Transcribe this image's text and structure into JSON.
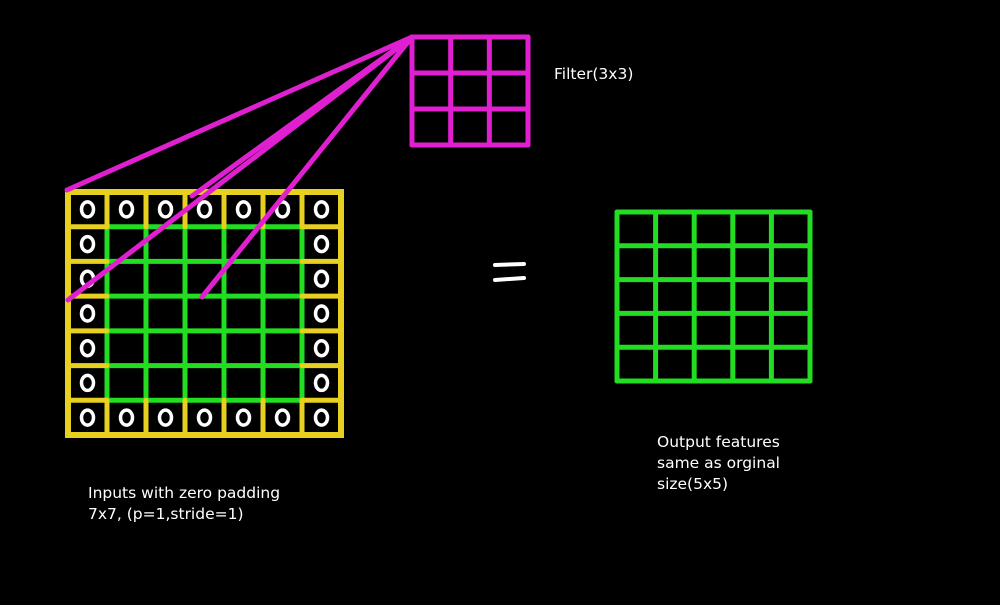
{
  "filter": {
    "label": "Filter(3x3)",
    "rows": 3,
    "cols": 3,
    "color": "#e020d0"
  },
  "input": {
    "label_line1": "Inputs with zero padding",
    "label_line2": "7x7, (p=1,stride=1)",
    "rows": 7,
    "cols": 7,
    "padding": 1,
    "padding_color": "#e8d020",
    "inner_color": "#22dd22",
    "zero_marker_color": "#ffffff"
  },
  "output": {
    "label_line1": "Output features",
    "label_line2": "same as orginal",
    "label_line3": "size(5x5)",
    "rows": 5,
    "cols": 5,
    "color": "#22dd22"
  },
  "operator": {
    "symbol": "=",
    "color": "#ffffff"
  },
  "connector_color": "#e020d0"
}
